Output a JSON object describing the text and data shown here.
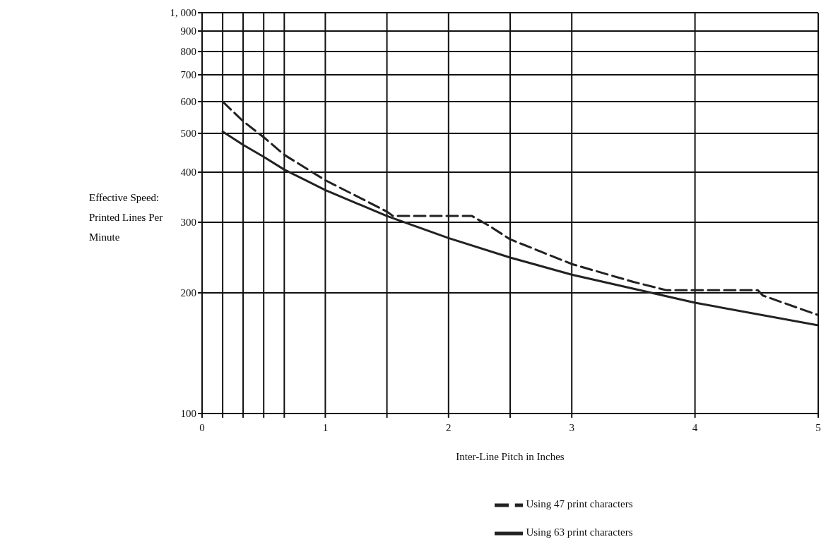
{
  "chart_data": {
    "type": "line",
    "xlabel": "Inter-Line Pitch in Inches",
    "ylabel": "Effective Speed: Printed Lines Per Minute",
    "series": [
      {
        "name": "Using 63 print characters",
        "color": "#222222",
        "line_style": "solid",
        "x": [
          0.167,
          0.333,
          0.5,
          0.667,
          1,
          1.5,
          2,
          2.5,
          3,
          4,
          5
        ],
        "values": [
          505,
          468,
          437,
          406,
          361,
          311,
          274,
          245,
          222,
          189,
          166
        ]
      },
      {
        "name": "Using 47 print characters",
        "color": "#222222",
        "line_style": "dashed",
        "x": [
          0.167,
          0.333,
          0.5,
          0.667,
          1,
          1.5,
          1.55,
          2.19,
          2.33,
          2.5,
          3,
          3.5,
          3.77,
          4.51,
          4.55,
          5
        ],
        "values": [
          600,
          536,
          489,
          442,
          382,
          319,
          311,
          311,
          294,
          272,
          236,
          213,
          203,
          203,
          197,
          176
        ]
      }
    ],
    "xlim": [
      0,
      5
    ],
    "xticks": [
      0,
      {
        "value": 0.167,
        "label": null
      },
      {
        "value": 0.333,
        "label": null
      },
      {
        "value": 0.5,
        "label": null
      },
      {
        "value": 0.667,
        "label": null
      },
      1,
      {
        "value": 1.5,
        "label": null
      },
      2,
      {
        "value": 2.5,
        "label": null
      },
      3,
      4,
      5
    ],
    "ylim": [
      100,
      1000
    ],
    "yticks": [
      100,
      200,
      300,
      400,
      500,
      600,
      700,
      800,
      900,
      {
        "value": 1000,
        "label": "1, 000"
      }
    ],
    "log": "y",
    "grid": true,
    "legend": "bottom",
    "marker": "none"
  }
}
